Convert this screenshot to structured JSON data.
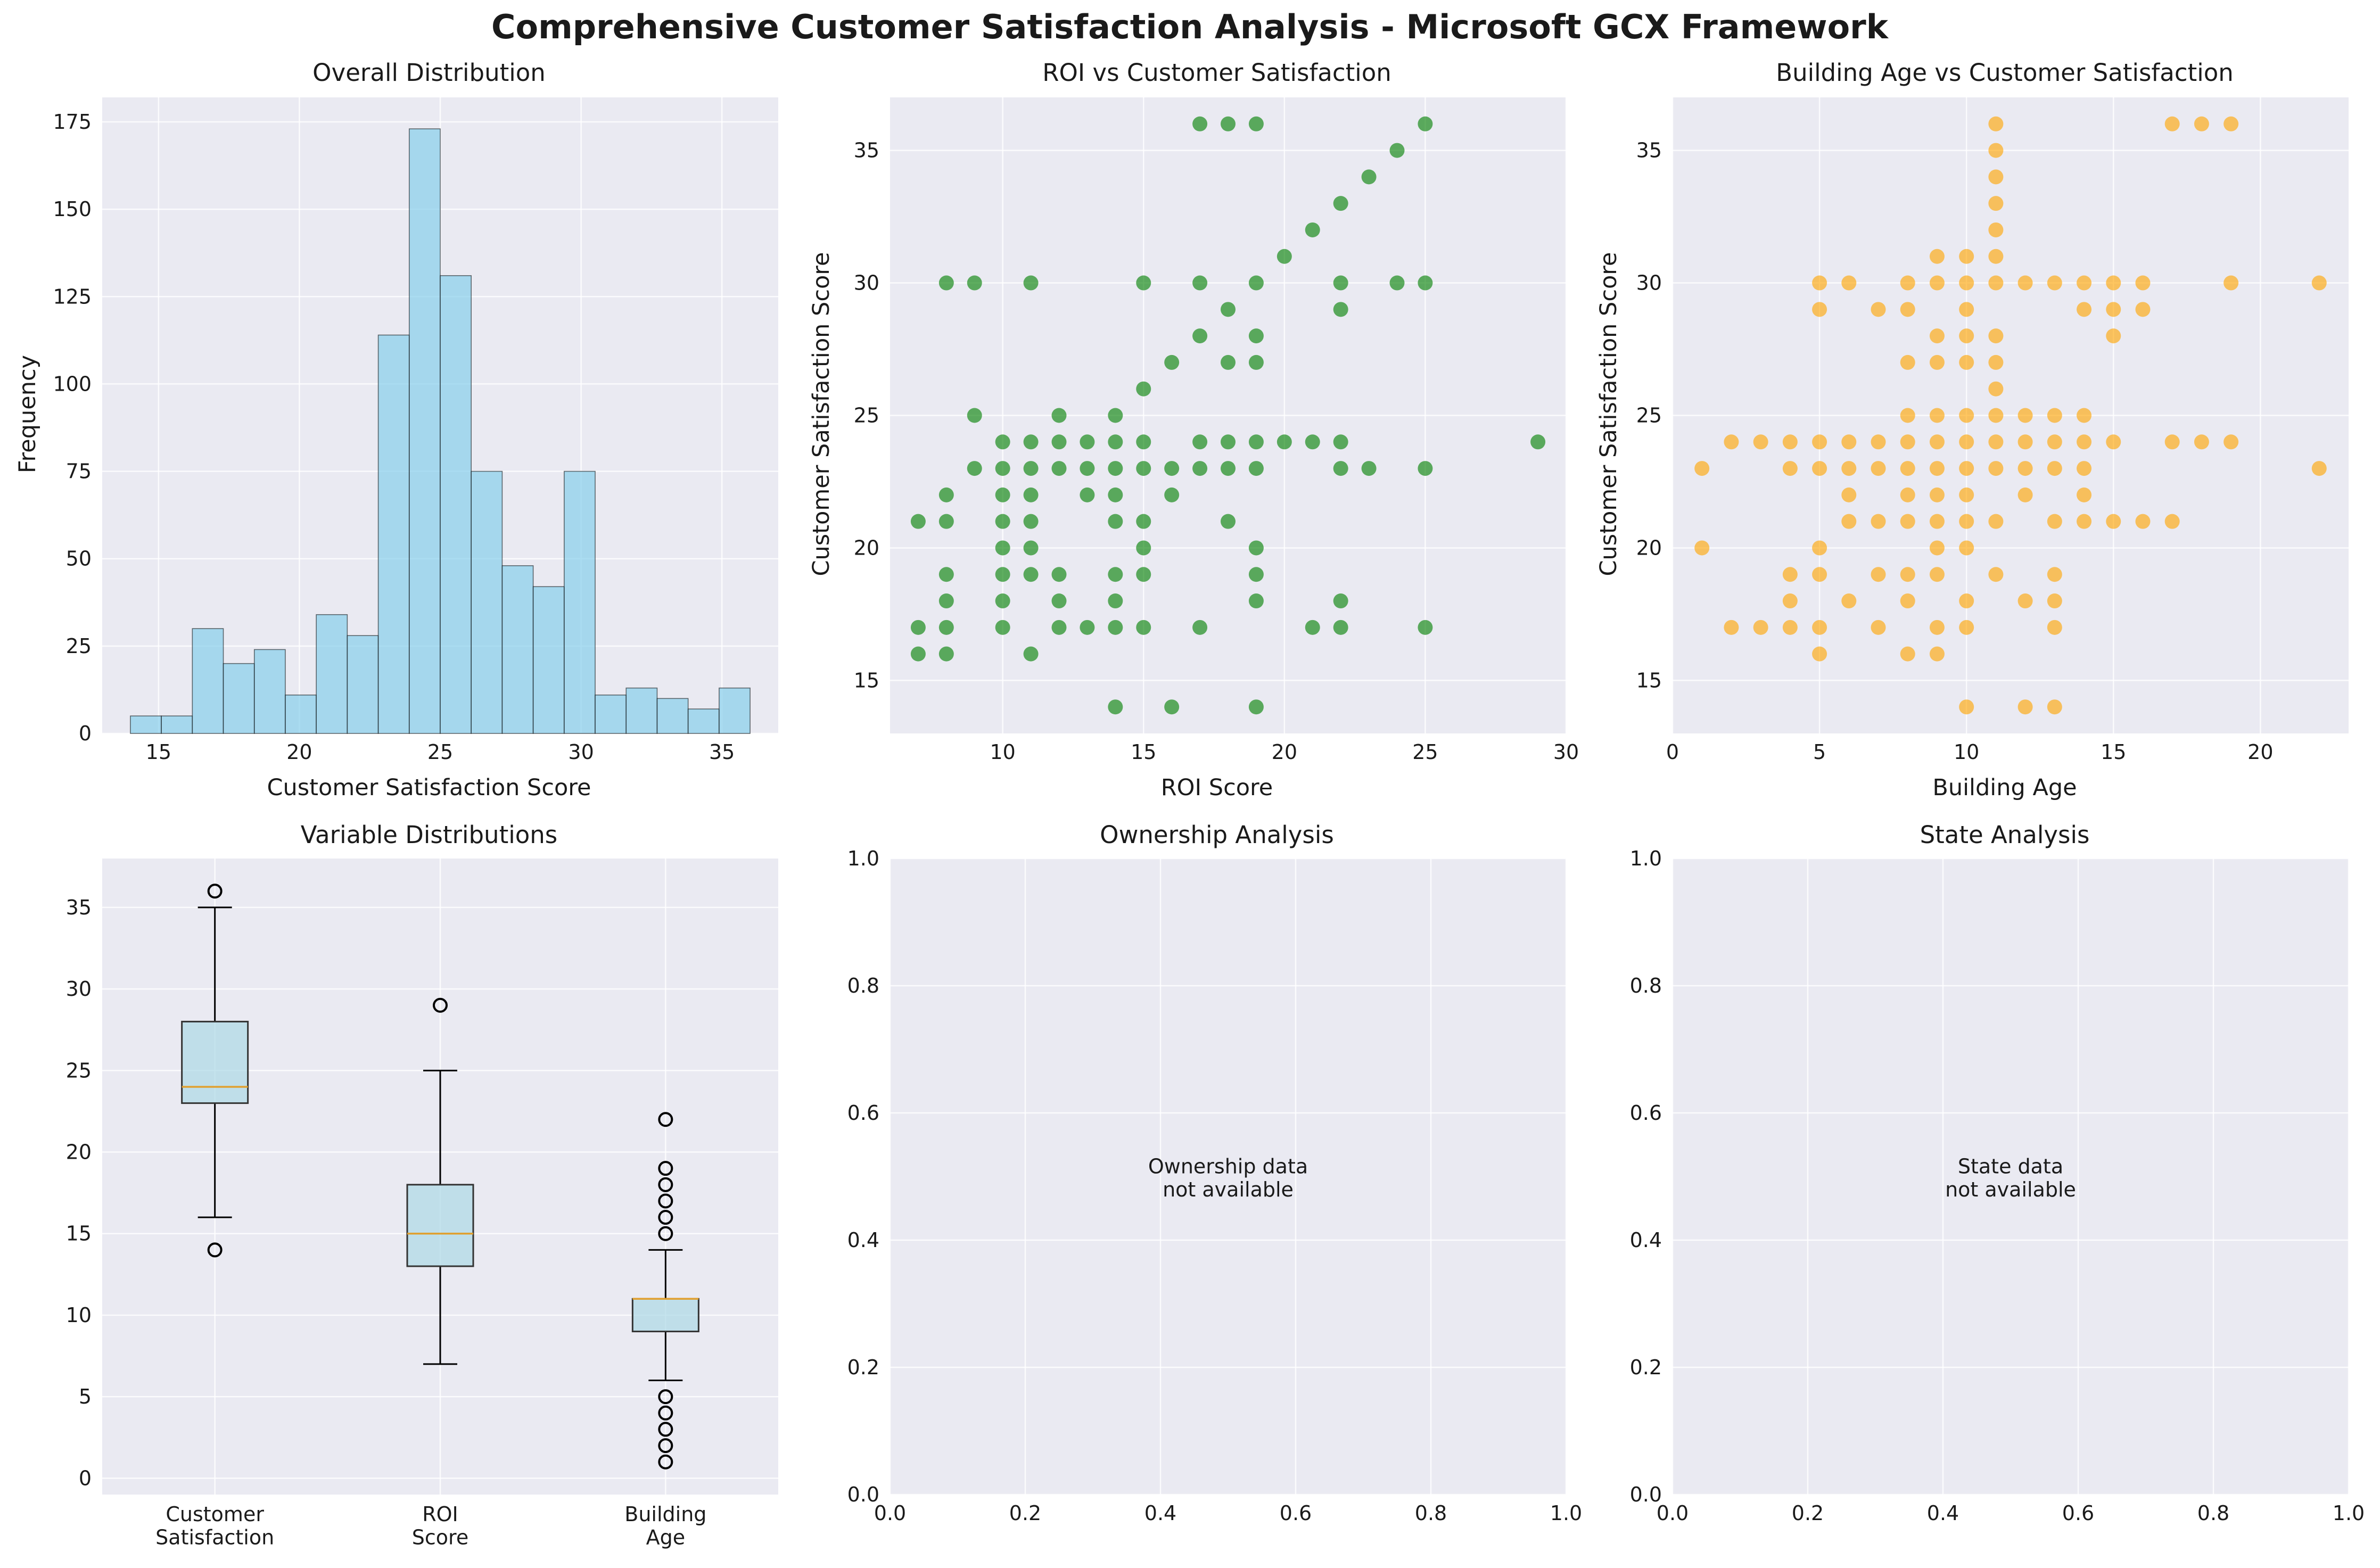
{
  "title": "Comprehensive Customer Satisfaction Analysis - Microsoft GCX Framework",
  "colors": {
    "panel_bg": "#EAEAF2",
    "grid": "#FFFFFF",
    "hist": "#87CEEB",
    "roi": "#008000",
    "age": "#FFA500",
    "box": "#ADD8E6",
    "median": "#E0A030"
  },
  "chart_data": [
    {
      "type": "bar",
      "title": "Overall Distribution",
      "xlabel": "Customer Satisfaction Score",
      "ylabel": "Frequency",
      "xlim": [
        13.0,
        37.0
      ],
      "ylim": [
        0,
        182
      ],
      "xticks": [
        15,
        20,
        25,
        30,
        35
      ],
      "yticks": [
        0,
        25,
        50,
        75,
        100,
        125,
        150,
        175
      ],
      "bin_edges": [
        14,
        15.1,
        16.2,
        17.3,
        18.4,
        19.5,
        20.6,
        21.7,
        22.8,
        23.9,
        25,
        26.1,
        27.2,
        28.3,
        29.4,
        30.5,
        31.6,
        32.7,
        33.8,
        34.9,
        36
      ],
      "values": [
        5,
        5,
        30,
        20,
        24,
        11,
        34,
        28,
        114,
        173,
        131,
        75,
        48,
        42,
        75,
        11,
        13,
        10,
        7,
        13
      ]
    },
    {
      "type": "scatter",
      "title": "ROI vs Customer Satisfaction",
      "xlabel": "ROI Score",
      "ylabel": "Customer Satisfaction Score",
      "xlim": [
        6,
        30
      ],
      "ylim": [
        13,
        37
      ],
      "xticks": [
        10,
        15,
        20,
        25,
        30
      ],
      "yticks": [
        15,
        20,
        25,
        30,
        35
      ],
      "points": [
        [
          17,
          36
        ],
        [
          18,
          36
        ],
        [
          19,
          36
        ],
        [
          25,
          36
        ],
        [
          24,
          35
        ],
        [
          23,
          34
        ],
        [
          22,
          33
        ],
        [
          21,
          32
        ],
        [
          20,
          31
        ],
        [
          8,
          30
        ],
        [
          9,
          30
        ],
        [
          11,
          30
        ],
        [
          15,
          30
        ],
        [
          17,
          30
        ],
        [
          19,
          30
        ],
        [
          22,
          30
        ],
        [
          24,
          30
        ],
        [
          25,
          30
        ],
        [
          18,
          29
        ],
        [
          22,
          29
        ],
        [
          17,
          28
        ],
        [
          19,
          28
        ],
        [
          16,
          27
        ],
        [
          18,
          27
        ],
        [
          19,
          27
        ],
        [
          15,
          26
        ],
        [
          9,
          25
        ],
        [
          12,
          25
        ],
        [
          14,
          25
        ],
        [
          10,
          24
        ],
        [
          11,
          24
        ],
        [
          12,
          24
        ],
        [
          13,
          24
        ],
        [
          14,
          24
        ],
        [
          15,
          24
        ],
        [
          17,
          24
        ],
        [
          18,
          24
        ],
        [
          19,
          24
        ],
        [
          20,
          24
        ],
        [
          21,
          24
        ],
        [
          22,
          24
        ],
        [
          29,
          24
        ],
        [
          9,
          23
        ],
        [
          10,
          23
        ],
        [
          11,
          23
        ],
        [
          12,
          23
        ],
        [
          13,
          23
        ],
        [
          14,
          23
        ],
        [
          15,
          23
        ],
        [
          16,
          23
        ],
        [
          17,
          23
        ],
        [
          18,
          23
        ],
        [
          19,
          23
        ],
        [
          22,
          23
        ],
        [
          23,
          23
        ],
        [
          25,
          23
        ],
        [
          8,
          22
        ],
        [
          10,
          22
        ],
        [
          11,
          22
        ],
        [
          13,
          22
        ],
        [
          14,
          22
        ],
        [
          16,
          22
        ],
        [
          7,
          21
        ],
        [
          8,
          21
        ],
        [
          10,
          21
        ],
        [
          11,
          21
        ],
        [
          14,
          21
        ],
        [
          15,
          21
        ],
        [
          18,
          21
        ],
        [
          10,
          20
        ],
        [
          11,
          20
        ],
        [
          15,
          20
        ],
        [
          19,
          20
        ],
        [
          8,
          19
        ],
        [
          10,
          19
        ],
        [
          11,
          19
        ],
        [
          12,
          19
        ],
        [
          14,
          19
        ],
        [
          15,
          19
        ],
        [
          19,
          19
        ],
        [
          8,
          18
        ],
        [
          10,
          18
        ],
        [
          12,
          18
        ],
        [
          14,
          18
        ],
        [
          19,
          18
        ],
        [
          22,
          18
        ],
        [
          7,
          17
        ],
        [
          8,
          17
        ],
        [
          10,
          17
        ],
        [
          12,
          17
        ],
        [
          13,
          17
        ],
        [
          14,
          17
        ],
        [
          15,
          17
        ],
        [
          17,
          17
        ],
        [
          21,
          17
        ],
        [
          22,
          17
        ],
        [
          25,
          17
        ],
        [
          7,
          16
        ],
        [
          8,
          16
        ],
        [
          11,
          16
        ],
        [
          14,
          14
        ],
        [
          16,
          14
        ],
        [
          19,
          14
        ]
      ]
    },
    {
      "type": "scatter",
      "title": "Building Age vs Customer Satisfaction",
      "xlabel": "Building Age",
      "ylabel": "Customer Satisfaction Score",
      "xlim": [
        0,
        23
      ],
      "ylim": [
        13,
        37
      ],
      "xticks": [
        0,
        5,
        10,
        15,
        20
      ],
      "yticks": [
        15,
        20,
        25,
        30,
        35
      ],
      "points": [
        [
          11,
          36
        ],
        [
          17,
          36
        ],
        [
          18,
          36
        ],
        [
          19,
          36
        ],
        [
          11,
          35
        ],
        [
          11,
          34
        ],
        [
          11,
          33
        ],
        [
          11,
          32
        ],
        [
          9,
          31
        ],
        [
          10,
          31
        ],
        [
          11,
          31
        ],
        [
          5,
          30
        ],
        [
          6,
          30
        ],
        [
          8,
          30
        ],
        [
          9,
          30
        ],
        [
          10,
          30
        ],
        [
          11,
          30
        ],
        [
          12,
          30
        ],
        [
          13,
          30
        ],
        [
          14,
          30
        ],
        [
          15,
          30
        ],
        [
          16,
          30
        ],
        [
          19,
          30
        ],
        [
          22,
          30
        ],
        [
          5,
          29
        ],
        [
          7,
          29
        ],
        [
          8,
          29
        ],
        [
          10,
          29
        ],
        [
          14,
          29
        ],
        [
          15,
          29
        ],
        [
          16,
          29
        ],
        [
          9,
          28
        ],
        [
          10,
          28
        ],
        [
          11,
          28
        ],
        [
          15,
          28
        ],
        [
          8,
          27
        ],
        [
          9,
          27
        ],
        [
          10,
          27
        ],
        [
          11,
          27
        ],
        [
          11,
          26
        ],
        [
          8,
          25
        ],
        [
          9,
          25
        ],
        [
          10,
          25
        ],
        [
          11,
          25
        ],
        [
          12,
          25
        ],
        [
          13,
          25
        ],
        [
          14,
          25
        ],
        [
          2,
          24
        ],
        [
          3,
          24
        ],
        [
          4,
          24
        ],
        [
          5,
          24
        ],
        [
          6,
          24
        ],
        [
          7,
          24
        ],
        [
          8,
          24
        ],
        [
          9,
          24
        ],
        [
          10,
          24
        ],
        [
          11,
          24
        ],
        [
          12,
          24
        ],
        [
          13,
          24
        ],
        [
          14,
          24
        ],
        [
          15,
          24
        ],
        [
          17,
          24
        ],
        [
          18,
          24
        ],
        [
          19,
          24
        ],
        [
          1,
          23
        ],
        [
          4,
          23
        ],
        [
          5,
          23
        ],
        [
          6,
          23
        ],
        [
          7,
          23
        ],
        [
          8,
          23
        ],
        [
          9,
          23
        ],
        [
          10,
          23
        ],
        [
          11,
          23
        ],
        [
          12,
          23
        ],
        [
          13,
          23
        ],
        [
          14,
          23
        ],
        [
          22,
          23
        ],
        [
          6,
          22
        ],
        [
          8,
          22
        ],
        [
          9,
          22
        ],
        [
          10,
          22
        ],
        [
          12,
          22
        ],
        [
          14,
          22
        ],
        [
          6,
          21
        ],
        [
          7,
          21
        ],
        [
          8,
          21
        ],
        [
          9,
          21
        ],
        [
          10,
          21
        ],
        [
          11,
          21
        ],
        [
          13,
          21
        ],
        [
          14,
          21
        ],
        [
          15,
          21
        ],
        [
          16,
          21
        ],
        [
          17,
          21
        ],
        [
          1,
          20
        ],
        [
          5,
          20
        ],
        [
          9,
          20
        ],
        [
          10,
          20
        ],
        [
          4,
          19
        ],
        [
          5,
          19
        ],
        [
          7,
          19
        ],
        [
          8,
          19
        ],
        [
          9,
          19
        ],
        [
          11,
          19
        ],
        [
          13,
          19
        ],
        [
          4,
          18
        ],
        [
          6,
          18
        ],
        [
          8,
          18
        ],
        [
          10,
          18
        ],
        [
          12,
          18
        ],
        [
          13,
          18
        ],
        [
          2,
          17
        ],
        [
          3,
          17
        ],
        [
          4,
          17
        ],
        [
          5,
          17
        ],
        [
          7,
          17
        ],
        [
          9,
          17
        ],
        [
          10,
          17
        ],
        [
          13,
          17
        ],
        [
          5,
          16
        ],
        [
          8,
          16
        ],
        [
          9,
          16
        ],
        [
          10,
          14
        ],
        [
          12,
          14
        ],
        [
          13,
          14
        ]
      ]
    },
    {
      "type": "box",
      "title": "Variable Distributions",
      "ylim": [
        -1,
        38
      ],
      "yticks": [
        0,
        5,
        10,
        15,
        20,
        25,
        30,
        35
      ],
      "categories": [
        "Customer\nSatisfaction",
        "ROI\nScore",
        "Building\nAge"
      ],
      "boxes": [
        {
          "q1": 23,
          "median": 24,
          "q3": 28,
          "whisker_low": 16,
          "whisker_high": 35,
          "outliers": [
            14,
            36
          ]
        },
        {
          "q1": 13,
          "median": 15,
          "q3": 18,
          "whisker_low": 7,
          "whisker_high": 25,
          "outliers": [
            29
          ]
        },
        {
          "q1": 9,
          "median": 11,
          "q3": 11,
          "whisker_low": 6,
          "whisker_high": 14,
          "outliers": [
            1,
            2,
            3,
            4,
            5,
            15,
            16,
            17,
            18,
            19,
            22
          ]
        }
      ]
    },
    {
      "type": "empty",
      "title": "Ownership Analysis",
      "note": "Ownership data\nnot available",
      "xlim": [
        0,
        1
      ],
      "ylim": [
        0,
        1
      ],
      "xticks": [
        "0.0",
        "0.2",
        "0.4",
        "0.6",
        "0.8",
        "1.0"
      ],
      "yticks": [
        "0.0",
        "0.2",
        "0.4",
        "0.6",
        "0.8",
        "1.0"
      ]
    },
    {
      "type": "empty",
      "title": "State Analysis",
      "note": "State data\nnot available",
      "xlim": [
        0,
        1
      ],
      "ylim": [
        0,
        1
      ],
      "xticks": [
        "0.0",
        "0.2",
        "0.4",
        "0.6",
        "0.8",
        "1.0"
      ],
      "yticks": [
        "0.0",
        "0.2",
        "0.4",
        "0.6",
        "0.8",
        "1.0"
      ]
    }
  ]
}
